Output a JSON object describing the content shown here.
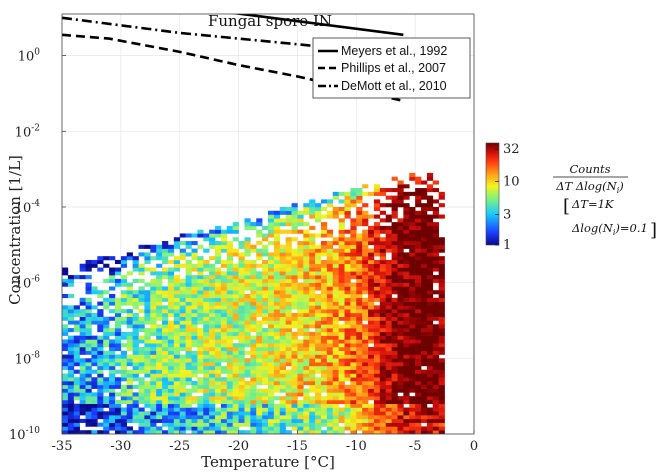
{
  "chart_data": {
    "type": "heatmap",
    "title": "Fungal spore IN",
    "xlabel": "Temperature [°C]",
    "ylabel": "Concentration [1/L]",
    "xlim": [
      -35,
      0
    ],
    "ylim_log10": [
      -10,
      1.1
    ],
    "y_scale": "log",
    "x_ticks": [
      "-35",
      "-30",
      "-25",
      "-20",
      "-15",
      "-10",
      "-5",
      "0"
    ],
    "y_ticks": [
      {
        "exp": -10,
        "label": "10",
        "sup": "-10"
      },
      {
        "exp": -8,
        "label": "10",
        "sup": "-8"
      },
      {
        "exp": -6,
        "label": "10",
        "sup": "-6"
      },
      {
        "exp": -4,
        "label": "10",
        "sup": "-4"
      },
      {
        "exp": -2,
        "label": "10",
        "sup": "-2"
      },
      {
        "exp": 0,
        "label": "10",
        "sup": "0"
      }
    ],
    "grid": true,
    "legend_position": "top-right",
    "series": [
      {
        "name": "Meyers et al., 1992",
        "style": "solid",
        "x": [
          -21,
          -6
        ],
        "log10_y": [
          1.15,
          0.55
        ]
      },
      {
        "name": "Phillips et al., 2007",
        "style": "dashed",
        "x": [
          -35,
          -31,
          -25,
          -20,
          -15,
          -10,
          -6
        ],
        "log10_y": [
          0.55,
          0.45,
          0.1,
          -0.25,
          -0.55,
          -0.9,
          -1.2
        ]
      },
      {
        "name": "DeMott et al., 2010",
        "style": "dashdot",
        "x": [
          -35,
          -30,
          -25,
          -20,
          -15,
          -10,
          -5
        ],
        "log10_y": [
          1.0,
          0.8,
          0.6,
          0.45,
          0.3,
          0.15,
          -0.05
        ]
      }
    ],
    "heatmap": {
      "x_range": [
        -35,
        -2.5
      ],
      "log10_y_range": [
        -10,
        -3.1
      ],
      "count_scale": "log",
      "peak_temperature": -5
    },
    "colorbar": {
      "ticks": [
        "32",
        "10",
        "3",
        "1"
      ],
      "values": [
        32,
        10,
        3,
        1
      ],
      "colors": [
        "#0a0a8c",
        "#1a3cff",
        "#19c8ff",
        "#7ff27f",
        "#f6f21d",
        "#ff9a1a",
        "#ff3a10",
        "#c40a0a",
        "#6e0000"
      ]
    },
    "annotation": {
      "numerator": "Counts",
      "denominator": "ΔT Δlog(N",
      "sub_i": "i",
      "line1": "ΔT=1K",
      "line2": "Δlog(N",
      "line2_tail": ")=0.1"
    }
  }
}
